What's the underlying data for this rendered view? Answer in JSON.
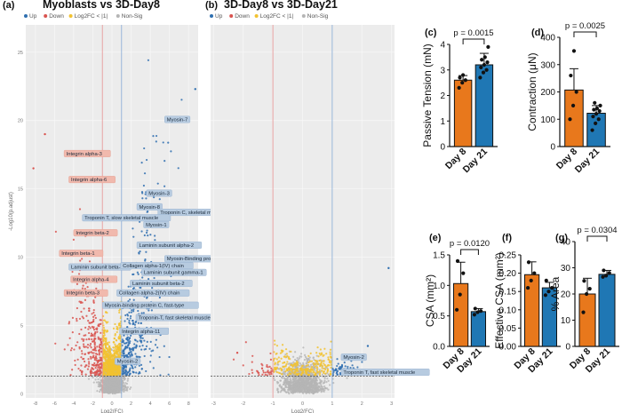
{
  "chart_data": [
    {
      "type": "scatter",
      "panel": "(a)",
      "title": "Myoblasts vs 3D-Day8",
      "legend": [
        {
          "label": "Up",
          "color": "#2f6fb0"
        },
        {
          "label": "Down",
          "color": "#d9534f"
        },
        {
          "label": "Log2FC < |1|",
          "color": "#f2c230"
        },
        {
          "label": "Non-Sig",
          "color": "#b5b5b5"
        }
      ],
      "xlabel": "Log2(FC)",
      "ylabel": "-Log10(p.adjust)",
      "xlim": [
        -9,
        9
      ],
      "ylim": [
        -0.3,
        27
      ],
      "xticks": [
        -8,
        -6,
        -4,
        -2,
        0,
        2,
        4,
        6,
        8
      ],
      "yticks": [
        0,
        5,
        10,
        15,
        20,
        25
      ],
      "fc_threshold": [
        -1,
        1
      ],
      "p_threshold": 1.3,
      "outliers": [
        [
          8.7,
          22.3
        ],
        [
          -7.0,
          19.0
        ],
        [
          -8.2,
          16.5
        ]
      ],
      "annotations": [
        {
          "text": "Myosin-7",
          "x": 5.5,
          "y": 20.0,
          "group": "up"
        },
        {
          "text": "Integrin alpha-3",
          "x": -5.0,
          "y": 17.5,
          "group": "down"
        },
        {
          "text": "Integrin alpha-6",
          "x": -4.5,
          "y": 15.6,
          "group": "down"
        },
        {
          "text": "Myosin-3",
          "x": 3.6,
          "y": 14.6,
          "group": "up"
        },
        {
          "text": "Myosin-8",
          "x": 2.6,
          "y": 13.6,
          "group": "up"
        },
        {
          "text": "Troponin C, skeletal muscle",
          "x": 4.8,
          "y": 13.2,
          "group": "up"
        },
        {
          "text": "Troponin T, slow skeletal muscle",
          "x": -3.1,
          "y": 12.8,
          "group": "up"
        },
        {
          "text": "Myosin-1",
          "x": 3.3,
          "y": 12.3,
          "group": "up"
        },
        {
          "text": "Integrin beta-2",
          "x": -4.0,
          "y": 11.7,
          "group": "down"
        },
        {
          "text": "Laminin subunit alpha-2",
          "x": 2.6,
          "y": 10.8,
          "group": "up"
        },
        {
          "text": "Integrin beta-1",
          "x": -5.5,
          "y": 10.2,
          "group": "down"
        },
        {
          "text": "Myosin-Binding protein C, slow-type",
          "x": 5.5,
          "y": 9.8,
          "group": "up"
        },
        {
          "text": "Laminin subunit beta-1",
          "x": -4.5,
          "y": 9.2,
          "group": "up"
        },
        {
          "text": "Collagen alpha-1(IV) chain",
          "x": 0.9,
          "y": 9.3,
          "group": "up"
        },
        {
          "text": "Laminin subunit gamma-1",
          "x": 3.1,
          "y": 8.8,
          "group": "up"
        },
        {
          "text": "Integrin alpha-4",
          "x": -4.3,
          "y": 8.3,
          "group": "down"
        },
        {
          "text": "Laminin subunit beta-2",
          "x": 1.9,
          "y": 8.0,
          "group": "up"
        },
        {
          "text": "Integrin beta-3",
          "x": -5.0,
          "y": 7.3,
          "group": "down"
        },
        {
          "text": "Collagen alpha-2(IV) chain",
          "x": 0.5,
          "y": 7.3,
          "group": "up"
        },
        {
          "text": "Myosin-binding protein C, fast-type",
          "x": -1.0,
          "y": 6.4,
          "group": "up"
        },
        {
          "text": "Troponin-T, fast skeletal muscle",
          "x": 2.5,
          "y": 5.5,
          "group": "up"
        },
        {
          "text": "Integrin alpha-11",
          "x": 0.8,
          "y": 4.5,
          "group": "up"
        },
        {
          "text": "Myosin-2",
          "x": 0.3,
          "y": 2.3,
          "group": "up"
        }
      ]
    },
    {
      "type": "scatter",
      "panel": "(b)",
      "title": "3D-Day8 vs 3D-Day21",
      "legend": [
        {
          "label": "Up",
          "color": "#2f6fb0"
        },
        {
          "label": "Down",
          "color": "#d9534f"
        },
        {
          "label": "Log2FC < |1|",
          "color": "#f2c230"
        },
        {
          "label": "Non-Sig",
          "color": "#b5b5b5"
        }
      ],
      "xlabel": "Log2(FC)",
      "ylabel": "",
      "xlim": [
        -3.1,
        3.1
      ],
      "ylim": [
        -0.3,
        27
      ],
      "xticks": [
        -3,
        -2,
        -1,
        0,
        1,
        2,
        3
      ],
      "fc_threshold": [
        -1,
        1
      ],
      "p_threshold": 1.3,
      "outliers": [
        [
          2.9,
          9.2
        ],
        [
          -2.2,
          3.0
        ],
        [
          2.2,
          3.5
        ]
      ],
      "annotations": [
        {
          "text": "Myosin-2",
          "x": 1.3,
          "y": 2.6,
          "group": "up"
        },
        {
          "text": "Troponin T, fast skeletal muscle",
          "x": 1.3,
          "y": 1.5,
          "group": "up"
        }
      ]
    },
    {
      "type": "bar",
      "panel": "(c)",
      "categories": [
        "Day 8",
        "Day 21"
      ],
      "values": [
        2.6,
        3.2
      ],
      "errors": [
        0.18,
        0.45
      ],
      "points": [
        [
          2.3,
          2.5,
          2.6,
          2.7,
          2.8
        ],
        [
          2.7,
          2.9,
          3.0,
          3.1,
          3.2,
          3.3,
          3.4,
          3.5,
          3.9
        ]
      ],
      "ylabel": "Passive Tension (mN)",
      "ylim": [
        0,
        4
      ],
      "yticks": [
        0,
        1,
        2,
        3,
        4
      ],
      "pvalue": "p = 0.0015"
    },
    {
      "type": "bar",
      "panel": "(d)",
      "categories": [
        "Day 8",
        "Day 21"
      ],
      "values": [
        207,
        122
      ],
      "errors": [
        78,
        28
      ],
      "points": [
        [
          100,
          150,
          200,
          260,
          350
        ],
        [
          60,
          85,
          100,
          110,
          120,
          130,
          135,
          140,
          150,
          160
        ]
      ],
      "ylabel": "Contraction (μN)",
      "ylim": [
        0,
        400
      ],
      "yticks": [
        0,
        100,
        200,
        300,
        400
      ],
      "pvalue": "p = 0.0025"
    },
    {
      "type": "bar",
      "panel": "(e)",
      "categories": [
        "Day 8",
        "Day 21"
      ],
      "values": [
        1.03,
        0.57
      ],
      "errors": [
        0.35,
        0.05
      ],
      "points": [
        [
          0.6,
          0.85,
          1.2,
          1.4
        ],
        [
          0.52,
          0.56,
          0.58,
          0.62
        ]
      ],
      "ylabel": "CSA (mm²)",
      "ylim": [
        0,
        1.5
      ],
      "yticks": [
        "0.0",
        "0.5",
        "1.0",
        "1.5"
      ],
      "pvalue": "p = 0.0120"
    },
    {
      "type": "bar",
      "panel": "(f)",
      "categories": [
        "Day 8",
        "Day 21"
      ],
      "values": [
        0.196,
        0.16
      ],
      "errors": [
        0.035,
        0.015
      ],
      "points": [
        [
          0.16,
          0.18,
          0.2,
          0.23
        ],
        [
          0.14,
          0.15,
          0.16,
          0.18
        ]
      ],
      "ylabel": "Effective CSA (mm²)",
      "ylim": [
        0,
        0.25
      ],
      "yticks": [
        "0.00",
        "0.05",
        "0.10",
        "0.15",
        "0.20",
        "0.25"
      ],
      "pvalue": ""
    },
    {
      "type": "bar",
      "panel": "(g)",
      "categories": [
        "Day 8",
        "Day 21"
      ],
      "values": [
        20,
        27.5
      ],
      "errors": [
        6,
        1.5
      ],
      "points": [
        [
          13,
          20,
          22,
          25
        ],
        [
          26.5,
          27,
          28,
          29
        ]
      ],
      "ylabel": "% Area",
      "ylim": [
        0,
        40
      ],
      "yticks": [
        0,
        10,
        20,
        30,
        40
      ],
      "pvalue": "p = 0.0304"
    }
  ],
  "colors": {
    "up": "#2f6fb0",
    "down": "#d9534f",
    "fc": "#f2c230",
    "nonsig": "#b5b5b5",
    "day8_bar": "#e8781c",
    "day21_bar": "#1f77b4",
    "up_label_bg": "#b7cbe0",
    "down_label_bg": "#f1b9ad"
  }
}
